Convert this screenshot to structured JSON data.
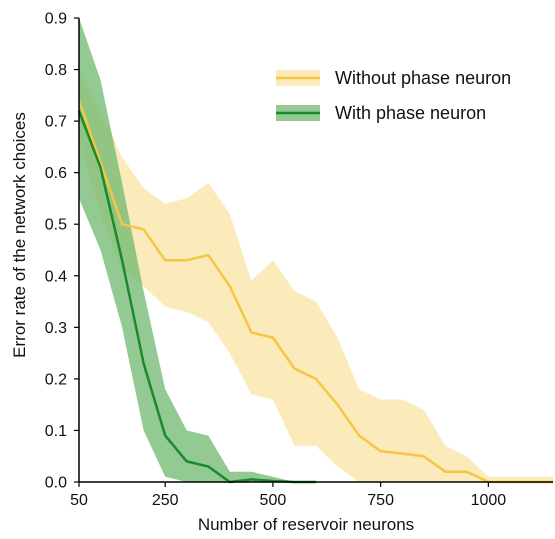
{
  "chart_data": {
    "type": "line",
    "xlabel": "Number of reservoir neurons",
    "ylabel": "Error rate of the network choices",
    "xlim": [
      50,
      1150
    ],
    "ylim": [
      0,
      0.9
    ],
    "xticks": [
      50,
      250,
      500,
      750,
      1000
    ],
    "yticks": [
      0.0,
      0.1,
      0.2,
      0.3,
      0.4,
      0.5,
      0.6,
      0.7,
      0.8,
      0.9
    ],
    "xtick_labels": [
      "50",
      "250",
      "500",
      "750",
      "1000"
    ],
    "ytick_labels": [
      "0.0",
      "0.1",
      "0.2",
      "0.3",
      "0.4",
      "0.5",
      "0.6",
      "0.7",
      "0.8",
      "0.9"
    ],
    "legend_position": "top-right",
    "grid": false,
    "series": [
      {
        "name": "Without phase neuron",
        "color": "#f5c644",
        "band_color": "#f9dc8c",
        "x": [
          50,
          100,
          150,
          200,
          250,
          300,
          350,
          400,
          450,
          500,
          550,
          600,
          650,
          700,
          750,
          800,
          850,
          900,
          950,
          1000,
          1050,
          1100,
          1150
        ],
        "y": [
          0.74,
          0.62,
          0.5,
          0.49,
          0.43,
          0.43,
          0.44,
          0.38,
          0.29,
          0.28,
          0.22,
          0.2,
          0.15,
          0.09,
          0.06,
          0.055,
          0.05,
          0.02,
          0.02,
          0.0,
          0.0,
          0.0,
          0.0
        ],
        "upper": [
          0.8,
          0.72,
          0.63,
          0.57,
          0.54,
          0.55,
          0.58,
          0.52,
          0.39,
          0.43,
          0.37,
          0.35,
          0.28,
          0.18,
          0.16,
          0.16,
          0.14,
          0.07,
          0.05,
          0.01,
          0.01,
          0.01,
          0.01
        ],
        "lower": [
          0.66,
          0.52,
          0.41,
          0.38,
          0.34,
          0.33,
          0.31,
          0.25,
          0.17,
          0.16,
          0.07,
          0.07,
          0.03,
          0.0,
          0.0,
          0.0,
          0.0,
          0.0,
          0.0,
          0.0,
          0.0,
          0.0,
          0.0
        ]
      },
      {
        "name": "With phase neuron",
        "color": "#1a8a2e",
        "band_color": "#6fb86f",
        "x": [
          50,
          100,
          150,
          200,
          250,
          300,
          350,
          400,
          450,
          500,
          550,
          600
        ],
        "y": [
          0.72,
          0.61,
          0.43,
          0.23,
          0.09,
          0.04,
          0.03,
          0.0,
          0.005,
          0.002,
          0.0,
          0.0
        ],
        "upper": [
          0.9,
          0.78,
          0.58,
          0.37,
          0.18,
          0.1,
          0.09,
          0.02,
          0.02,
          0.01,
          0.0,
          0.0
        ],
        "lower": [
          0.55,
          0.45,
          0.3,
          0.1,
          0.01,
          0.0,
          0.0,
          0.0,
          0.0,
          0.0,
          0.0,
          0.0
        ]
      }
    ]
  }
}
